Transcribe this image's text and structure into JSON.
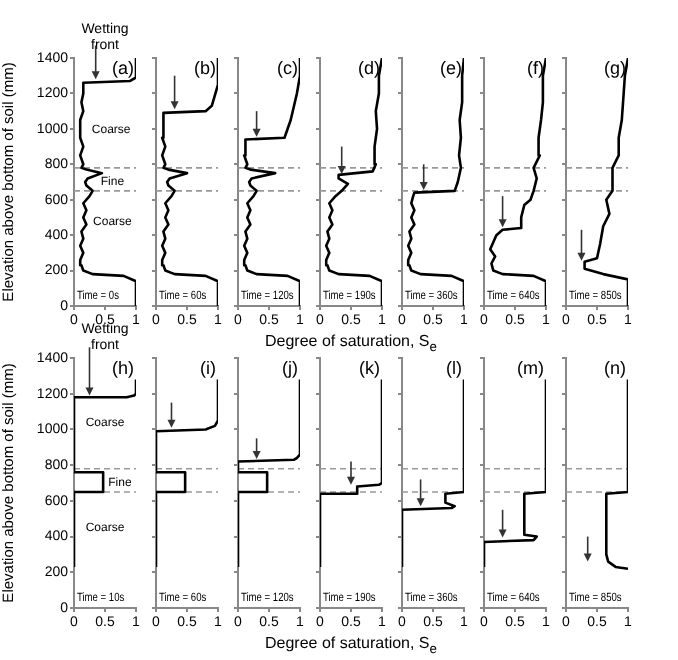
{
  "chart_data": [
    {
      "type": "line",
      "ylabel": "Elevation above bottom of soil (mm)",
      "annotations": [
        "(a)",
        "Time = 0s",
        "Wetting front",
        "Coarse",
        "Fine",
        "Coarse"
      ],
      "xlim": [
        0,
        1
      ],
      "xticks": [
        0,
        0.5,
        1
      ],
      "ylim": [
        0,
        1400
      ],
      "yticks": [
        0,
        200,
        400,
        600,
        800,
        1000,
        1200,
        1400
      ],
      "ref_lines": [
        {
          "axis": "y",
          "value": 650,
          "color": "#999999",
          "line_style": "dashed"
        },
        {
          "axis": "y",
          "value": 780,
          "color": "#999999",
          "line_style": "dashed"
        }
      ],
      "series": [
        {
          "color": "#000000",
          "x": [
            1,
            1,
            0.8,
            0.3,
            0.15,
            0.12,
            0.1,
            0.15,
            0.1,
            0.15,
            0.12,
            0.2,
            0.15,
            0.2,
            0.15,
            0.25,
            0.3,
            0.2,
            0.18,
            0.22,
            0.45,
            0.2,
            0.12,
            0.15,
            0.1,
            0.15,
            0.1,
            0.1,
            0.15,
            0.12,
            0.15,
            0.15,
            0.9,
            1,
            1
          ],
          "values": [
            0,
            140,
            170,
            180,
            200,
            230,
            260,
            300,
            340,
            380,
            420,
            460,
            500,
            540,
            580,
            620,
            650,
            680,
            700,
            720,
            750,
            770,
            780,
            800,
            850,
            900,
            950,
            1050,
            1100,
            1150,
            1200,
            1260,
            1270,
            1290,
            1400
          ]
        }
      ]
    },
    {
      "type": "line",
      "tick_labels": "x",
      "annotations": [
        "(b)",
        "Time = 60s"
      ],
      "xlim": [
        0,
        1
      ],
      "xticks": [
        0,
        0.5,
        1
      ],
      "ylim": [
        0,
        1400
      ],
      "yticks": [
        0,
        200,
        400,
        600,
        800,
        1000,
        1200,
        1400
      ],
      "ref_lines": [
        {
          "axis": "y",
          "value": 650,
          "color": "#999999",
          "line_style": "dashed"
        },
        {
          "axis": "y",
          "value": 780,
          "color": "#999999",
          "line_style": "dashed"
        }
      ],
      "series": [
        {
          "color": "#000000",
          "x": [
            1,
            1,
            0.8,
            0.3,
            0.15,
            0.12,
            0.1,
            0.15,
            0.1,
            0.15,
            0.12,
            0.2,
            0.15,
            0.2,
            0.15,
            0.25,
            0.3,
            0.2,
            0.18,
            0.22,
            0.5,
            0.2,
            0.12,
            0.15,
            0.1,
            0.15,
            0.1,
            0.12,
            0.8,
            0.9,
            1,
            1
          ],
          "values": [
            0,
            140,
            170,
            180,
            200,
            230,
            260,
            300,
            340,
            380,
            420,
            460,
            500,
            540,
            580,
            620,
            650,
            680,
            700,
            720,
            750,
            770,
            780,
            800,
            850,
            900,
            950,
            1090,
            1100,
            1130,
            1250,
            1400
          ]
        }
      ]
    },
    {
      "type": "line",
      "tick_labels": "x",
      "annotations": [
        "(c)",
        "Time = 120s"
      ],
      "xlim": [
        0,
        1
      ],
      "xticks": [
        0,
        0.5,
        1
      ],
      "ylim": [
        0,
        1400
      ],
      "yticks": [
        0,
        200,
        400,
        600,
        800,
        1000,
        1200,
        1400
      ],
      "ref_lines": [
        {
          "axis": "y",
          "value": 650,
          "color": "#999999",
          "line_style": "dashed"
        },
        {
          "axis": "y",
          "value": 780,
          "color": "#999999",
          "line_style": "dashed"
        }
      ],
      "series": [
        {
          "color": "#000000",
          "x": [
            1,
            1,
            0.8,
            0.3,
            0.15,
            0.12,
            0.1,
            0.15,
            0.1,
            0.15,
            0.12,
            0.2,
            0.15,
            0.2,
            0.15,
            0.25,
            0.3,
            0.2,
            0.18,
            0.22,
            0.6,
            0.2,
            0.12,
            0.15,
            0.1,
            0.12,
            0.75,
            0.85,
            0.95,
            1,
            1
          ],
          "values": [
            0,
            140,
            170,
            180,
            200,
            230,
            260,
            300,
            340,
            380,
            420,
            460,
            500,
            540,
            580,
            620,
            650,
            680,
            700,
            720,
            750,
            770,
            780,
            800,
            850,
            940,
            950,
            1050,
            1200,
            1300,
            1400
          ]
        }
      ]
    },
    {
      "type": "line",
      "tick_labels": "x",
      "xlabel": "Degree of saturation, S$_{e}$",
      "annotations": [
        "(d)",
        "Time = 190s"
      ],
      "xlim": [
        0,
        1
      ],
      "xticks": [
        0,
        0.5,
        1
      ],
      "ylim": [
        0,
        1400
      ],
      "yticks": [
        0,
        200,
        400,
        600,
        800,
        1000,
        1200,
        1400
      ],
      "ref_lines": [
        {
          "axis": "y",
          "value": 650,
          "color": "#999999",
          "line_style": "dashed"
        },
        {
          "axis": "y",
          "value": 780,
          "color": "#999999",
          "line_style": "dashed"
        }
      ],
      "series": [
        {
          "color": "#000000",
          "x": [
            1,
            1,
            0.8,
            0.3,
            0.15,
            0.12,
            0.1,
            0.15,
            0.1,
            0.15,
            0.12,
            0.2,
            0.15,
            0.2,
            0.15,
            0.25,
            0.35,
            0.45,
            0.3,
            0.3,
            0.85,
            0.9,
            0.88,
            0.92,
            0.9,
            0.95,
            0.95,
            1
          ],
          "values": [
            0,
            140,
            170,
            180,
            200,
            230,
            260,
            300,
            340,
            380,
            420,
            460,
            500,
            540,
            580,
            620,
            650,
            690,
            720,
            740,
            760,
            800,
            900,
            1000,
            1100,
            1200,
            1300,
            1400
          ]
        }
      ]
    },
    {
      "type": "line",
      "tick_labels": "x",
      "annotations": [
        "(e)",
        "Time = 360s"
      ],
      "xlim": [
        0,
        1
      ],
      "xticks": [
        0,
        0.5,
        1
      ],
      "ylim": [
        0,
        1400
      ],
      "yticks": [
        0,
        200,
        400,
        600,
        800,
        1000,
        1200,
        1400
      ],
      "ref_lines": [
        {
          "axis": "y",
          "value": 650,
          "color": "#999999",
          "line_style": "dashed"
        },
        {
          "axis": "y",
          "value": 780,
          "color": "#999999",
          "line_style": "dashed"
        }
      ],
      "series": [
        {
          "color": "#000000",
          "x": [
            1,
            1,
            0.8,
            0.3,
            0.15,
            0.12,
            0.1,
            0.15,
            0.1,
            0.15,
            0.12,
            0.2,
            0.15,
            0.2,
            0.15,
            0.18,
            0.2,
            0.85,
            0.9,
            0.95,
            0.92,
            0.95,
            0.93,
            0.97,
            0.97,
            1
          ],
          "values": [
            0,
            140,
            170,
            180,
            200,
            230,
            260,
            300,
            340,
            380,
            420,
            460,
            500,
            540,
            580,
            620,
            640,
            650,
            700,
            780,
            850,
            950,
            1050,
            1150,
            1300,
            1400
          ]
        }
      ]
    },
    {
      "type": "line",
      "tick_labels": "x",
      "annotations": [
        "(f)",
        "Time = 640s"
      ],
      "xlim": [
        0,
        1
      ],
      "xticks": [
        0,
        0.5,
        1
      ],
      "ylim": [
        0,
        1400
      ],
      "yticks": [
        0,
        200,
        400,
        600,
        800,
        1000,
        1200,
        1400
      ],
      "ref_lines": [
        {
          "axis": "y",
          "value": 650,
          "color": "#999999",
          "line_style": "dashed"
        },
        {
          "axis": "y",
          "value": 780,
          "color": "#999999",
          "line_style": "dashed"
        }
      ],
      "series": [
        {
          "color": "#000000",
          "x": [
            1,
            1,
            0.8,
            0.3,
            0.15,
            0.12,
            0.18,
            0.1,
            0.15,
            0.2,
            0.3,
            0.6,
            0.6,
            0.65,
            0.75,
            0.8,
            0.85,
            0.8,
            0.9,
            0.88,
            0.92,
            0.95,
            0.95,
            1
          ],
          "values": [
            0,
            140,
            170,
            180,
            200,
            240,
            280,
            320,
            360,
            400,
            430,
            440,
            500,
            570,
            600,
            650,
            720,
            780,
            850,
            950,
            1050,
            1150,
            1300,
            1400
          ]
        }
      ]
    },
    {
      "type": "line",
      "tick_labels": "x",
      "annotations": [
        "(g)",
        "Time = 850s"
      ],
      "xlim": [
        0,
        1
      ],
      "xticks": [
        0,
        0.5,
        1
      ],
      "ylim": [
        0,
        1400
      ],
      "yticks": [
        0,
        200,
        400,
        600,
        800,
        1000,
        1200,
        1400
      ],
      "ref_lines": [
        {
          "axis": "y",
          "value": 650,
          "color": "#999999",
          "line_style": "dashed"
        },
        {
          "axis": "y",
          "value": 780,
          "color": "#999999",
          "line_style": "dashed"
        }
      ],
      "series": [
        {
          "color": "#000000",
          "x": [
            1,
            1,
            0.6,
            0.3,
            0.3,
            0.5,
            0.55,
            0.6,
            0.7,
            0.65,
            0.75,
            0.75,
            0.85,
            0.85,
            0.9,
            0.92,
            0.95,
            1
          ],
          "values": [
            0,
            150,
            180,
            210,
            250,
            270,
            350,
            450,
            520,
            600,
            650,
            780,
            850,
            950,
            1050,
            1150,
            1300,
            1400
          ]
        }
      ]
    },
    {
      "type": "line",
      "ylabel": "Elevation above bottom of soil (mm)",
      "annotations": [
        "(h)",
        "Time = 10s",
        "Wetting front",
        "Coarse",
        "Fine",
        "Coarse"
      ],
      "xlim": [
        0,
        1
      ],
      "xticks": [
        0,
        0.5,
        1
      ],
      "ylim": [
        0,
        1400
      ],
      "yticks": [
        0,
        200,
        400,
        600,
        800,
        1000,
        1200,
        1400
      ],
      "ref_lines": [
        {
          "axis": "y",
          "value": 650,
          "color": "#999999",
          "line_style": "dashed"
        },
        {
          "axis": "y",
          "value": 780,
          "color": "#999999",
          "line_style": "dashed"
        }
      ],
      "series": [
        {
          "color": "#000000",
          "x": [
            0,
            0,
            0.47,
            0.47,
            0,
            0,
            0.85,
            0.97,
            1,
            1
          ],
          "values": [
            230,
            650,
            650,
            760,
            760,
            1180,
            1180,
            1190,
            1200,
            1280
          ]
        }
      ]
    },
    {
      "type": "line",
      "tick_labels": "x",
      "annotations": [
        "(i)",
        "Time = 60s"
      ],
      "xlim": [
        0,
        1
      ],
      "xticks": [
        0,
        0.5,
        1
      ],
      "ylim": [
        0,
        1400
      ],
      "yticks": [
        0,
        200,
        400,
        600,
        800,
        1000,
        1200,
        1400
      ],
      "ref_lines": [
        {
          "axis": "y",
          "value": 650,
          "color": "#999999",
          "line_style": "dashed"
        },
        {
          "axis": "y",
          "value": 780,
          "color": "#999999",
          "line_style": "dashed"
        }
      ],
      "series": [
        {
          "color": "#000000",
          "x": [
            0,
            0,
            0.47,
            0.47,
            0,
            0,
            0.8,
            0.95,
            1,
            1
          ],
          "values": [
            230,
            650,
            650,
            760,
            760,
            990,
            1000,
            1020,
            1050,
            1280
          ]
        }
      ]
    },
    {
      "type": "line",
      "tick_labels": "x",
      "annotations": [
        "(j)",
        "Time = 120s"
      ],
      "xlim": [
        0,
        1
      ],
      "xticks": [
        0,
        0.5,
        1
      ],
      "ylim": [
        0,
        1400
      ],
      "yticks": [
        0,
        200,
        400,
        600,
        800,
        1000,
        1200,
        1400
      ],
      "ref_lines": [
        {
          "axis": "y",
          "value": 650,
          "color": "#999999",
          "line_style": "dashed"
        },
        {
          "axis": "y",
          "value": 780,
          "color": "#999999",
          "line_style": "dashed"
        }
      ],
      "series": [
        {
          "color": "#000000",
          "x": [
            0,
            0,
            0.47,
            0.47,
            0,
            0,
            0.9,
            0.95,
            1,
            1
          ],
          "values": [
            230,
            650,
            650,
            760,
            760,
            820,
            830,
            840,
            860,
            1280
          ]
        }
      ]
    },
    {
      "type": "line",
      "tick_labels": "x",
      "xlabel": "Degree of saturation, S$_{e}$",
      "annotations": [
        "(k)",
        "Time = 190s"
      ],
      "xlim": [
        0,
        1
      ],
      "xticks": [
        0,
        0.5,
        1
      ],
      "ylim": [
        0,
        1400
      ],
      "yticks": [
        0,
        200,
        400,
        600,
        800,
        1000,
        1200,
        1400
      ],
      "ref_lines": [
        {
          "axis": "y",
          "value": 650,
          "color": "#999999",
          "line_style": "dashed"
        },
        {
          "axis": "y",
          "value": 780,
          "color": "#999999",
          "line_style": "dashed"
        }
      ],
      "series": [
        {
          "color": "#000000",
          "x": [
            0,
            0,
            0.6,
            0.6,
            0.95,
            1,
            1
          ],
          "values": [
            230,
            640,
            640,
            680,
            690,
            700,
            1280
          ]
        }
      ]
    },
    {
      "type": "line",
      "tick_labels": "x",
      "annotations": [
        "(l)",
        "Time = 360s"
      ],
      "xlim": [
        0,
        1
      ],
      "xticks": [
        0,
        0.5,
        1
      ],
      "ylim": [
        0,
        1400
      ],
      "yticks": [
        0,
        200,
        400,
        600,
        800,
        1000,
        1200,
        1400
      ],
      "ref_lines": [
        {
          "axis": "y",
          "value": 650,
          "color": "#999999",
          "line_style": "dashed"
        },
        {
          "axis": "y",
          "value": 780,
          "color": "#999999",
          "line_style": "dashed"
        }
      ],
      "series": [
        {
          "color": "#000000",
          "x": [
            0,
            0,
            0.8,
            0.85,
            0.7,
            0.7,
            1,
            1
          ],
          "values": [
            230,
            550,
            560,
            570,
            590,
            640,
            650,
            1280
          ]
        }
      ]
    },
    {
      "type": "line",
      "tick_labels": "x",
      "annotations": [
        "(m)",
        "Time = 640s"
      ],
      "xlim": [
        0,
        1
      ],
      "xticks": [
        0,
        0.5,
        1
      ],
      "ylim": [
        0,
        1400
      ],
      "yticks": [
        0,
        200,
        400,
        600,
        800,
        1000,
        1200,
        1400
      ],
      "ref_lines": [
        {
          "axis": "y",
          "value": 650,
          "color": "#999999",
          "line_style": "dashed"
        },
        {
          "axis": "y",
          "value": 780,
          "color": "#999999",
          "line_style": "dashed"
        }
      ],
      "series": [
        {
          "color": "#000000",
          "x": [
            0,
            0,
            0.8,
            0.85,
            0.65,
            0.65,
            1,
            1
          ],
          "values": [
            230,
            370,
            380,
            400,
            410,
            640,
            650,
            1280
          ]
        }
      ]
    },
    {
      "type": "line",
      "tick_labels": "x",
      "annotations": [
        "(n)",
        "Time = 850s"
      ],
      "xlim": [
        0,
        1
      ],
      "xticks": [
        0,
        0.5,
        1
      ],
      "ylim": [
        0,
        1400
      ],
      "yticks": [
        0,
        200,
        400,
        600,
        800,
        1000,
        1200,
        1400
      ],
      "ref_lines": [
        {
          "axis": "y",
          "value": 650,
          "color": "#999999",
          "line_style": "dashed"
        },
        {
          "axis": "y",
          "value": 780,
          "color": "#999999",
          "line_style": "dashed"
        }
      ],
      "series": [
        {
          "color": "#000000",
          "x": [
            1,
            0.8,
            0.68,
            0.65,
            0.65,
            1,
            1
          ],
          "values": [
            220,
            230,
            260,
            300,
            640,
            650,
            1280
          ]
        }
      ]
    }
  ]
}
